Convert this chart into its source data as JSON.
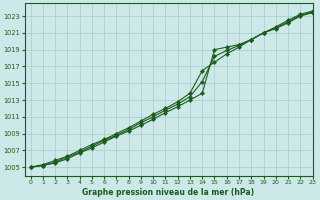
{
  "background_color": "#cce8e8",
  "grid_color": "#aacccc",
  "line_color": "#1a5c1a",
  "xlabel": "Graphe pression niveau de la mer (hPa)",
  "ylim": [
    1004,
    1024.5
  ],
  "xlim": [
    -0.5,
    23
  ],
  "yticks": [
    1005,
    1007,
    1009,
    1011,
    1013,
    1015,
    1017,
    1019,
    1021,
    1023
  ],
  "xticks": [
    0,
    1,
    2,
    3,
    4,
    5,
    6,
    7,
    8,
    9,
    10,
    11,
    12,
    13,
    14,
    15,
    16,
    17,
    18,
    19,
    20,
    21,
    22,
    23
  ],
  "series1": [
    1005.0,
    1005.2,
    1005.5,
    1006.0,
    1006.7,
    1007.3,
    1008.0,
    1008.7,
    1009.3,
    1010.0,
    1010.7,
    1011.5,
    1012.2,
    1013.0,
    1013.8,
    1019.0,
    1019.3,
    1019.6,
    1020.2,
    1021.0,
    1021.5,
    1022.2,
    1023.0,
    1023.4
  ],
  "series2": [
    1005.0,
    1005.3,
    1005.8,
    1006.3,
    1007.0,
    1007.7,
    1008.3,
    1009.0,
    1009.7,
    1010.5,
    1011.3,
    1012.0,
    1012.8,
    1013.8,
    1016.5,
    1017.5,
    1018.5,
    1019.3,
    1020.2,
    1021.0,
    1021.7,
    1022.5,
    1023.2,
    1023.6
  ],
  "series3": [
    1005.0,
    1005.2,
    1005.6,
    1006.2,
    1006.8,
    1007.5,
    1008.2,
    1008.8,
    1009.5,
    1010.3,
    1011.0,
    1011.8,
    1012.5,
    1013.4,
    1015.2,
    1018.2,
    1018.9,
    1019.5,
    1020.2,
    1021.0,
    1021.6,
    1022.3,
    1023.1,
    1023.5
  ]
}
